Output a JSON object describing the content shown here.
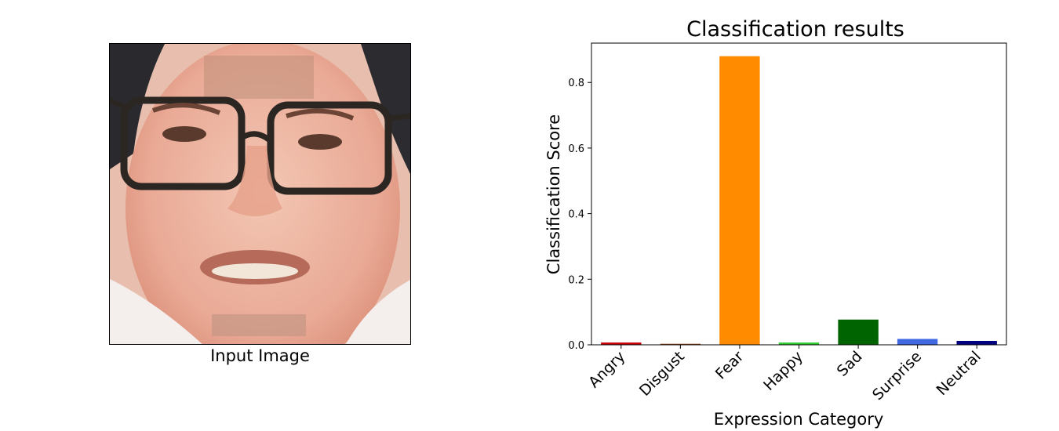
{
  "image_panel": {
    "caption": "Input Image"
  },
  "chart_data": {
    "type": "bar",
    "title": "Classification results",
    "xlabel": "Expression Category",
    "ylabel": "Classification Score",
    "categories": [
      "Angry",
      "Disgust",
      "Fear",
      "Happy",
      "Sad",
      "Surprise",
      "Neutral"
    ],
    "values": [
      0.007,
      0.003,
      0.88,
      0.007,
      0.077,
      0.018,
      0.012
    ],
    "colors": [
      "#cc0000",
      "#8b4513",
      "#ff8c00",
      "#32cd32",
      "#006400",
      "#4169e1",
      "#000080"
    ],
    "ylim": [
      0,
      0.92
    ],
    "yticks": [
      "0.0",
      "0.2",
      "0.4",
      "0.6",
      "0.8"
    ],
    "ytick_values": [
      0,
      0.2,
      0.4,
      0.6,
      0.8
    ],
    "grid": false,
    "legend": "none"
  }
}
